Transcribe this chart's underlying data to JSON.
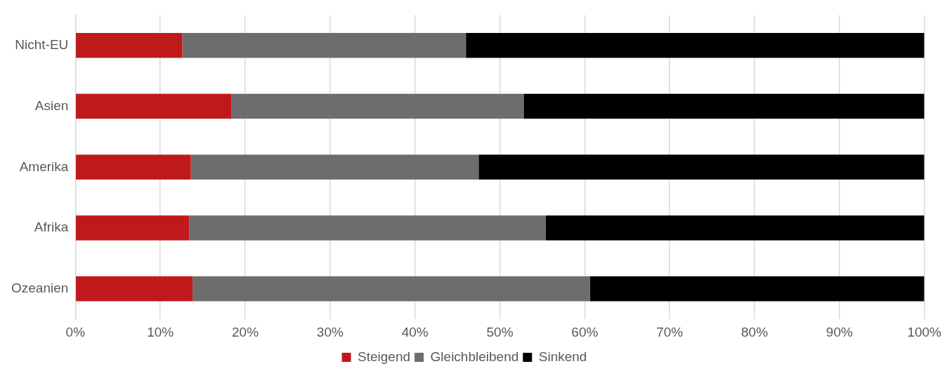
{
  "chart_data": {
    "type": "bar",
    "orientation": "horizontal",
    "stacked": true,
    "categories": [
      "Nicht-EU",
      "Asien",
      "Amerika",
      "Afrika",
      "Ozeanien"
    ],
    "series": [
      {
        "name": "Steigend",
        "color": "#c0191c",
        "values": [
          12.6,
          18.4,
          13.6,
          13.4,
          13.8
        ]
      },
      {
        "name": "Gleichbleibend",
        "color": "#6d6d6d",
        "values": [
          33.4,
          34.4,
          33.9,
          42.0,
          46.8
        ]
      },
      {
        "name": "Sinkend",
        "color": "#000000",
        "values": [
          54.0,
          47.2,
          52.5,
          44.6,
          39.4
        ]
      }
    ],
    "xlim": [
      0,
      100
    ],
    "xticks": [
      {
        "value": 0,
        "label": "0%"
      },
      {
        "value": 10,
        "label": "10%"
      },
      {
        "value": 20,
        "label": "20%"
      },
      {
        "value": 30,
        "label": "30%"
      },
      {
        "value": 40,
        "label": "40%"
      },
      {
        "value": 50,
        "label": "50%"
      },
      {
        "value": 60,
        "label": "60%"
      },
      {
        "value": 70,
        "label": "70%"
      },
      {
        "value": 80,
        "label": "80%"
      },
      {
        "value": 90,
        "label": "90%"
      },
      {
        "value": 100,
        "label": "100%"
      }
    ],
    "grid": "x",
    "legend": "bottom"
  }
}
